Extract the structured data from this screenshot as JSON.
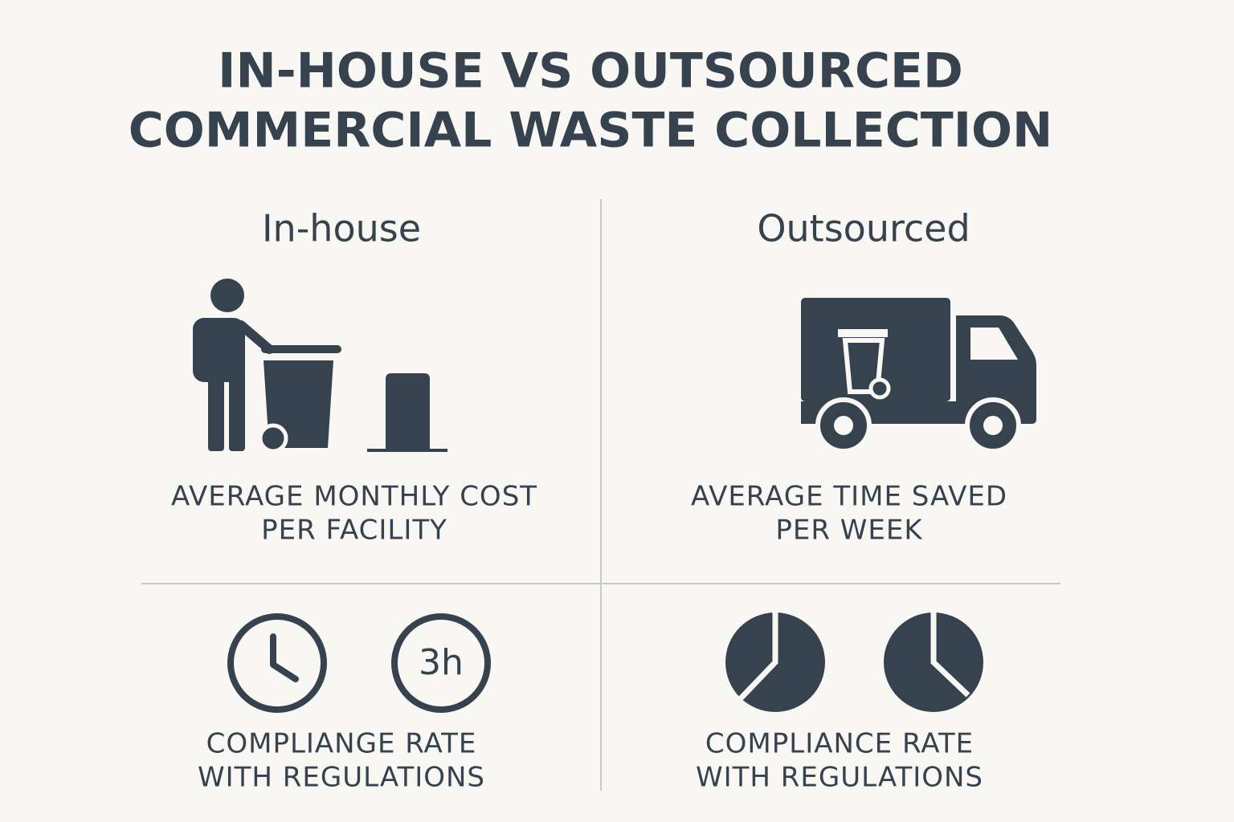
{
  "title": [
    "IN-HOUSE VS OUTSOURCED",
    "COMMERCIAL WASTE COLLECTION"
  ],
  "panels": [
    {
      "heading": "In-house",
      "top_label": [
        "AVERAGE MONTHLY COST",
        "PER FACILITY"
      ],
      "badge": "3h",
      "bottom_label": [
        "COMPLIANGE RATE",
        "WITH REGULATIONS"
      ]
    },
    {
      "heading": "Outsourced",
      "top_label": [
        "AVERAGE TIME SAVED",
        "PER WEEK"
      ],
      "bottom_label": [
        "COMPLIANCE RATE",
        "WITH REGULATIONS"
      ]
    }
  ]
}
